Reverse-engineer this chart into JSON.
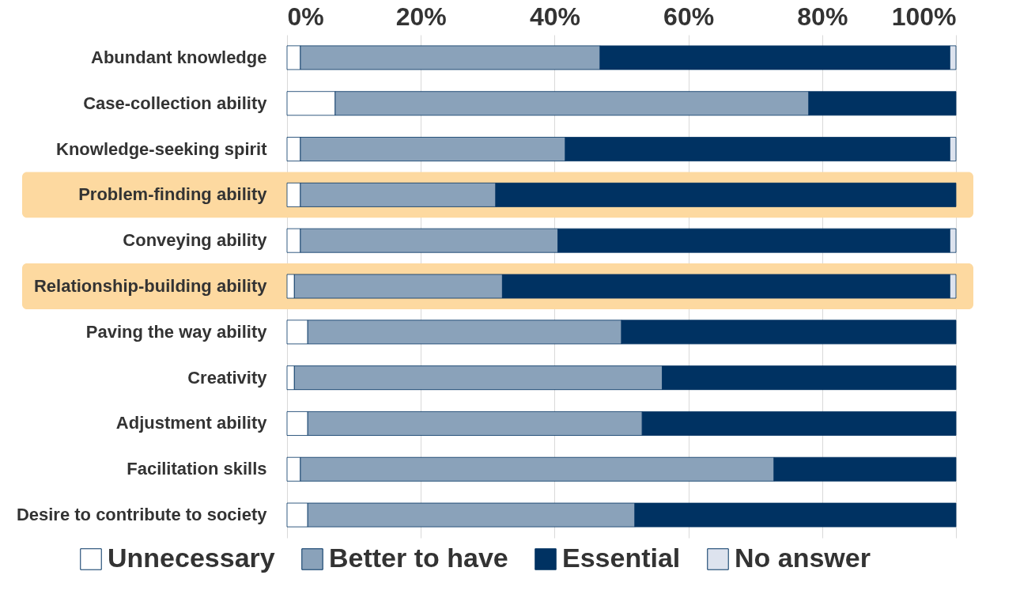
{
  "chart_data": {
    "type": "bar",
    "orientation": "horizontal",
    "stacked": true,
    "categories": [
      "Abundant knowledge",
      "Case-collection ability",
      "Knowledge-seeking spirit",
      "Problem-finding ability",
      "Conveying ability",
      "Relationship-building ability",
      "Paving the way ability",
      "Creativity",
      "Adjustment ability",
      "Facilitation skills",
      "Desire to contribute to society"
    ],
    "series": [
      {
        "name": "Unnecessary",
        "color": "#ffffff",
        "values": [
          2,
          7.2,
          2,
          2,
          2,
          1.1,
          3.1,
          1.1,
          3.1,
          2,
          3.1
        ]
      },
      {
        "name": "Better to have",
        "color": "#8aa2ba",
        "values": [
          44.8,
          70.8,
          39.6,
          29.2,
          38.5,
          31.1,
          46.9,
          55,
          50,
          70.8,
          48.9
        ]
      },
      {
        "name": "Essential",
        "color": "#003262",
        "values": [
          52.3,
          22,
          57.5,
          68.8,
          58.6,
          66.9,
          50,
          43.9,
          46.9,
          27.2,
          48
        ]
      },
      {
        "name": "No answer",
        "color": "#dde3ee",
        "values": [
          0.9,
          0,
          0.9,
          0,
          0.9,
          0.9,
          0,
          0,
          0,
          0,
          0
        ]
      }
    ],
    "xlim": [
      0,
      100
    ],
    "xticks": [
      {
        "value": 0,
        "label": "0%"
      },
      {
        "value": 20,
        "label": "20%"
      },
      {
        "value": 40,
        "label": "40%"
      },
      {
        "value": 60,
        "label": "60%"
      },
      {
        "value": 80,
        "label": "80%"
      },
      {
        "value": 100,
        "label": "100%"
      }
    ],
    "grid": "x",
    "legend": "bottom",
    "bands": [
      {
        "axis": "y",
        "from": "Problem-finding ability",
        "to": "Problem-finding ability",
        "color": "#fdd9a0"
      },
      {
        "axis": "y",
        "from": "Relationship-building ability",
        "to": "Relationship-building ability",
        "color": "#fdd9a0"
      }
    ]
  }
}
